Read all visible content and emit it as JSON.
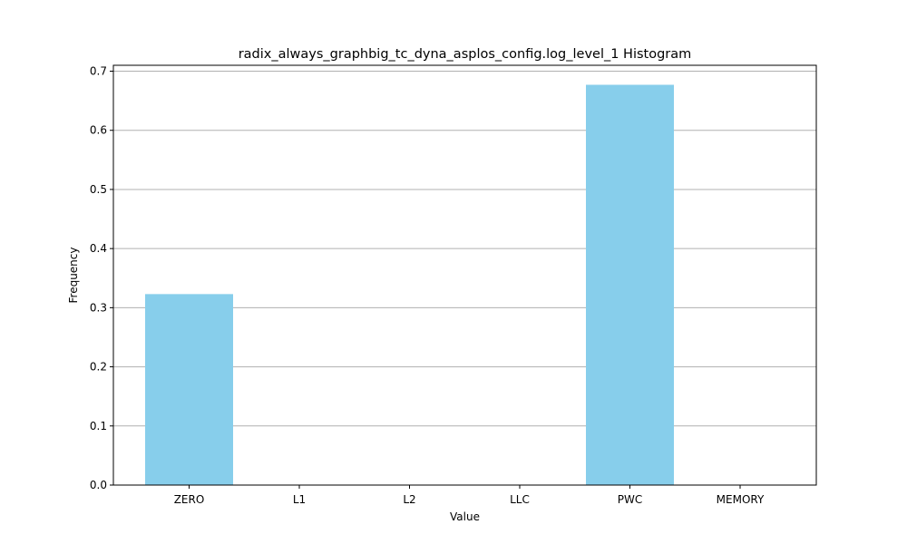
{
  "chart_data": {
    "type": "bar",
    "title": "radix_always_graphbig_tc_dyna_asplos_config.log_level_1 Histogram",
    "xlabel": "Value",
    "ylabel": "Frequency",
    "categories": [
      "ZERO",
      "L1",
      "L2",
      "LLC",
      "PWC",
      "MEMORY"
    ],
    "values": [
      0.323,
      0.0,
      0.0,
      0.0,
      0.677,
      0.0
    ],
    "ylim": [
      0,
      0.71
    ],
    "yticks": [
      0.0,
      0.1,
      0.2,
      0.3,
      0.4,
      0.5,
      0.6,
      0.7
    ],
    "ytick_labels": [
      "0.0",
      "0.1",
      "0.2",
      "0.3",
      "0.4",
      "0.5",
      "0.6",
      "0.7"
    ],
    "grid": "horizontal",
    "bar_color": "#87ceeb",
    "grid_color": "#b0b0b0"
  }
}
